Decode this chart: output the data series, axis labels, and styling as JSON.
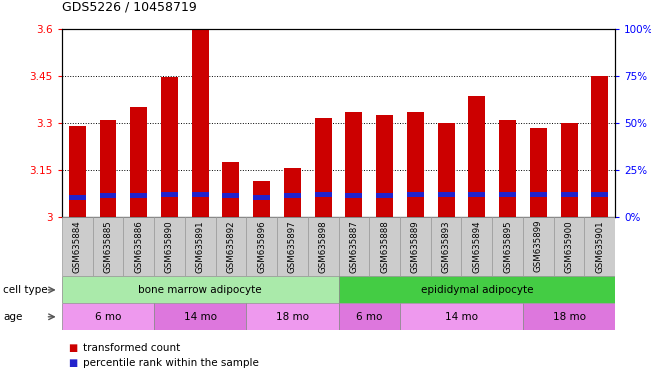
{
  "title": "GDS5226 / 10458719",
  "samples": [
    "GSM635884",
    "GSM635885",
    "GSM635886",
    "GSM635890",
    "GSM635891",
    "GSM635892",
    "GSM635896",
    "GSM635897",
    "GSM635898",
    "GSM635887",
    "GSM635888",
    "GSM635889",
    "GSM635893",
    "GSM635894",
    "GSM635895",
    "GSM635899",
    "GSM635900",
    "GSM635901"
  ],
  "bar_values": [
    3.29,
    3.31,
    3.35,
    3.445,
    3.595,
    3.175,
    3.115,
    3.155,
    3.315,
    3.335,
    3.325,
    3.335,
    3.3,
    3.385,
    3.31,
    3.285,
    3.3,
    3.45
  ],
  "blue_bottom": [
    3.055,
    3.06,
    3.06,
    3.063,
    3.063,
    3.06,
    3.055,
    3.06,
    3.063,
    3.06,
    3.06,
    3.063,
    3.063,
    3.063,
    3.063,
    3.063,
    3.063,
    3.063
  ],
  "blue_height": [
    0.016,
    0.016,
    0.016,
    0.016,
    0.016,
    0.016,
    0.016,
    0.016,
    0.016,
    0.016,
    0.016,
    0.016,
    0.016,
    0.016,
    0.016,
    0.016,
    0.016,
    0.016
  ],
  "ylim_left": [
    3.0,
    3.6
  ],
  "ylim_right": [
    0,
    100
  ],
  "yticks_left": [
    3.0,
    3.15,
    3.3,
    3.45,
    3.6
  ],
  "yticks_right": [
    0,
    25,
    50,
    75,
    100
  ],
  "ytick_labels_left": [
    "3",
    "3.15",
    "3.3",
    "3.45",
    "3.6"
  ],
  "ytick_labels_right": [
    "0%",
    "25%",
    "50%",
    "75%",
    "100%"
  ],
  "bar_color": "#cc0000",
  "blue_color": "#2222cc",
  "cell_type_groups": [
    {
      "label": "bone marrow adipocyte",
      "start": 0,
      "end": 9,
      "color": "#aaeaaa"
    },
    {
      "label": "epididymal adipocyte",
      "start": 9,
      "end": 18,
      "color": "#44cc44"
    }
  ],
  "age_groups": [
    {
      "label": "6 mo",
      "start": 0,
      "end": 3,
      "color": "#ee99ee"
    },
    {
      "label": "14 mo",
      "start": 3,
      "end": 6,
      "color": "#dd77dd"
    },
    {
      "label": "18 mo",
      "start": 6,
      "end": 9,
      "color": "#ee99ee"
    },
    {
      "label": "6 mo",
      "start": 9,
      "end": 11,
      "color": "#dd77dd"
    },
    {
      "label": "14 mo",
      "start": 11,
      "end": 15,
      "color": "#ee99ee"
    },
    {
      "label": "18 mo",
      "start": 15,
      "end": 18,
      "color": "#dd77dd"
    }
  ],
  "cell_type_label": "cell type",
  "age_label": "age",
  "legend1": "transformed count",
  "legend2": "percentile rank within the sample",
  "bar_width": 0.55,
  "background_color": "#ffffff",
  "xticklabel_bg": "#cccccc",
  "dotted_color": "#888888"
}
